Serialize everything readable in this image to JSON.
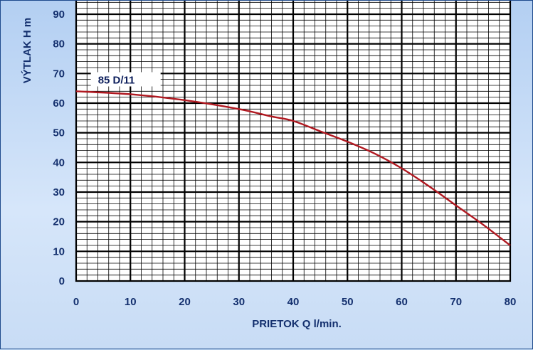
{
  "chart_data": {
    "type": "line",
    "title": "",
    "xlabel": "PRIETOK  Q  l/min.",
    "ylabel": "VÝTLAK  H  m",
    "xlim": [
      0,
      80
    ],
    "ylim": [
      0,
      90
    ],
    "x_ticks": [
      "0",
      "10",
      "20",
      "30",
      "40",
      "50",
      "60",
      "70",
      "80"
    ],
    "y_ticks": [
      "0",
      "10",
      "20",
      "30",
      "40",
      "50",
      "60",
      "70",
      "80",
      "90"
    ],
    "grid": true,
    "series": [
      {
        "name": "85 D/11",
        "color": "#b01820",
        "x": [
          0,
          10,
          20,
          30,
          36,
          40,
          45,
          50,
          55,
          60,
          65,
          70,
          75,
          80
        ],
        "y": [
          64,
          63,
          61,
          58,
          55.5,
          54,
          50.5,
          47,
          43,
          38,
          32,
          25.5,
          19,
          12
        ]
      }
    ]
  }
}
